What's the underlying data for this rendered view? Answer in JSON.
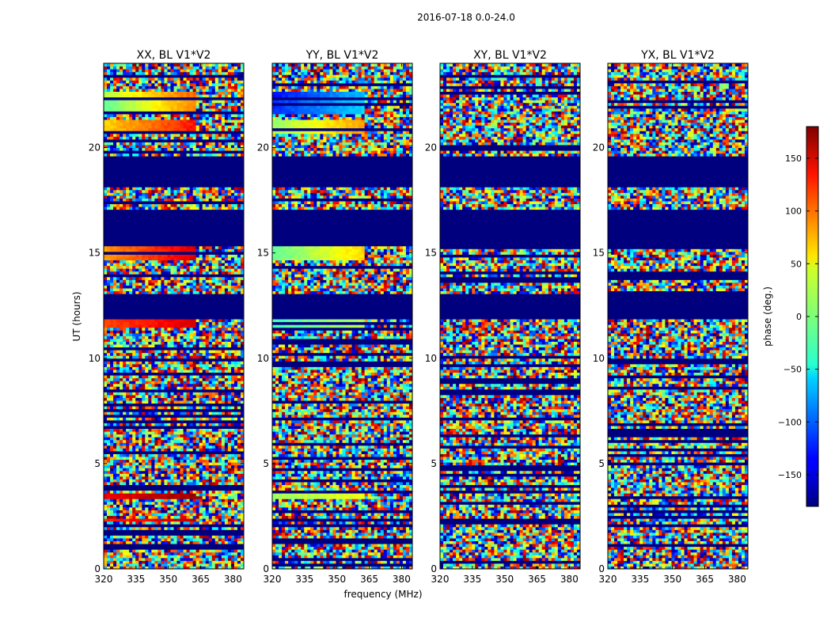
{
  "figure": {
    "suptitle": "2016-07-18 0.0-24.0",
    "xlabel": "frequency (MHz)",
    "ylabel": "UT (hours)",
    "colorbar_label": "phase (deg.)"
  },
  "chart_data": {
    "type": "heatmap",
    "colormap": "jet",
    "xlim": [
      320,
      385
    ],
    "ylim": [
      0,
      24
    ],
    "xticks": [
      320,
      335,
      350,
      365,
      380
    ],
    "yticks": [
      0,
      5,
      10,
      15,
      20
    ],
    "colorbar": {
      "range": [
        -180,
        180
      ],
      "ticks": [
        -150,
        -100,
        -50,
        0,
        50,
        100,
        150
      ],
      "tick_labels": [
        "−150",
        "−100",
        "−50",
        "0",
        "50",
        "100",
        "150"
      ]
    },
    "flagged_intervals_hours": [
      [
        11.9,
        13.0
      ],
      [
        15.4,
        17.0
      ],
      [
        18.1,
        19.6
      ]
    ],
    "panels": [
      {
        "title": "XX, BL V1*V2",
        "coherent_bands": [
          {
            "ut": [
              0.35,
              0.45
            ],
            "phase_deg": [
              30,
              90
            ]
          },
          {
            "ut": [
              2.3,
              2.45
            ],
            "phase_deg": [
              120,
              160
            ]
          },
          {
            "ut": [
              3.4,
              3.55
            ],
            "phase_deg": [
              140,
              170
            ]
          },
          {
            "ut": [
              11.4,
              11.85
            ],
            "phase_deg": [
              110,
              150
            ]
          },
          {
            "ut": [
              14.6,
              15.35
            ],
            "phase_deg": [
              80,
              150
            ]
          },
          {
            "ut": [
              20.6,
              21.3
            ],
            "phase_deg": [
              60,
              130
            ]
          },
          {
            "ut": [
              21.55,
              22.25
            ],
            "phase_deg": [
              -10,
              90
            ]
          },
          {
            "ut": [
              22.4,
              22.7
            ],
            "phase_deg": [
              20,
              100
            ]
          }
        ]
      },
      {
        "title": "YY, BL V1*V2",
        "coherent_bands": [
          {
            "ut": [
              0.35,
              0.45
            ],
            "phase_deg": [
              -40,
              20
            ]
          },
          {
            "ut": [
              2.3,
              2.45
            ],
            "phase_deg": [
              -30,
              20
            ]
          },
          {
            "ut": [
              3.4,
              3.55
            ],
            "phase_deg": [
              10,
              40
            ]
          },
          {
            "ut": [
              11.4,
              11.85
            ],
            "phase_deg": [
              -20,
              20
            ]
          },
          {
            "ut": [
              14.6,
              15.35
            ],
            "phase_deg": [
              -10,
              60
            ]
          },
          {
            "ut": [
              20.6,
              21.3
            ],
            "phase_deg": [
              10,
              80
            ]
          },
          {
            "ut": [
              21.55,
              22.25
            ],
            "phase_deg": [
              -120,
              -60
            ]
          },
          {
            "ut": [
              22.4,
              22.7
            ],
            "phase_deg": [
              -130,
              -70
            ]
          }
        ]
      },
      {
        "title": "XY, BL V1*V2",
        "coherent_bands": []
      },
      {
        "title": "YX, BL V1*V2",
        "coherent_bands": []
      }
    ]
  }
}
